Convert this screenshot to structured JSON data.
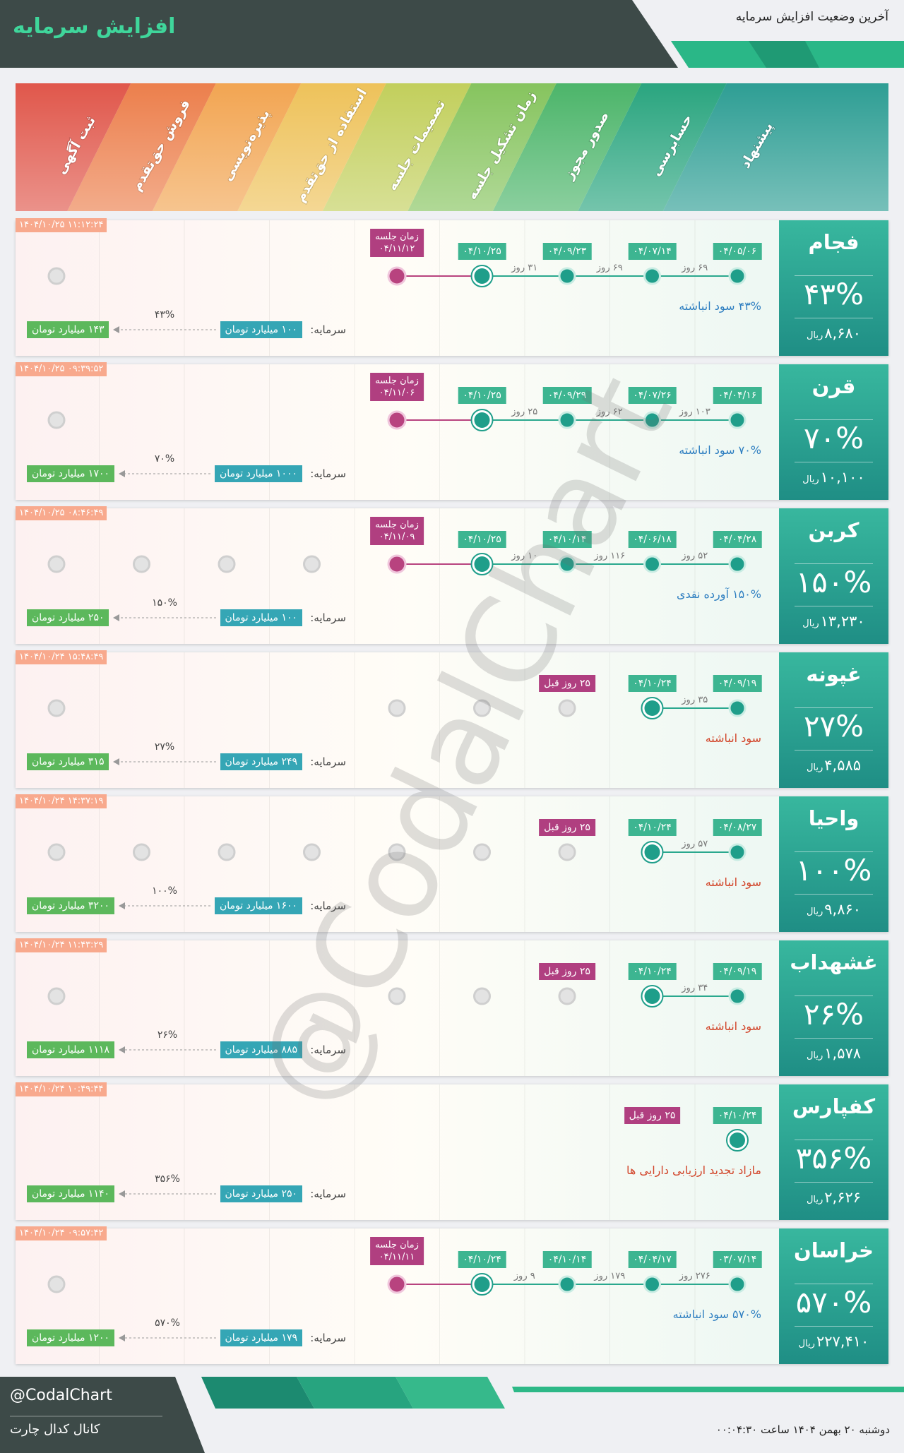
{
  "header": {
    "title": "افزایش سرمایه",
    "subtitle": "آخرین وضعیت افزایش سرمایه"
  },
  "stages": [
    "پیشنهاد",
    "حسابرسی",
    "صدور مجوز",
    "زمان تشکیل جلسه",
    "تصمیمات جلسه",
    "استفاده از حق‌تقدم",
    "پذیره‌نویسی",
    "فروش حق‌تقدم",
    "ثبت آگهی"
  ],
  "labels": {
    "meeting": "زمان جلسه",
    "capital": "سرمایه:",
    "currency": "ریال"
  },
  "rows": [
    {
      "name": "فجام",
      "percent": "۴۳%",
      "price": "۸,۶۸۰",
      "timestamp": "۱۴۰۴/۱۰/۲۵ ۱۱:۱۲:۲۴",
      "dates": [
        "۰۴/۰۵/۰۶",
        "۰۴/۰۷/۱۴",
        "۰۴/۰۹/۲۳",
        "۰۴/۱۰/۲۵"
      ],
      "gaps": [
        "۶۹ روز",
        "۶۹ روز",
        "۳۱ روز"
      ],
      "meeting": "۰۴/۱۱/۱۲",
      "description": "۴۳% سود انباشته",
      "description_color": "#2f7fc1",
      "capital_before": "۱۰۰ میلیارد تومان",
      "capital_after": "۱۴۳ میلیارد تومان",
      "increase": "۴۳%"
    },
    {
      "name": "قرن",
      "percent": "۷۰%",
      "price": "۱۰,۱۰۰",
      "timestamp": "۱۴۰۴/۱۰/۲۵ ۰۹:۳۹:۵۲",
      "dates": [
        "۰۴/۰۴/۱۶",
        "۰۴/۰۷/۲۶",
        "۰۴/۰۹/۲۹",
        "۰۴/۱۰/۲۵"
      ],
      "gaps": [
        "۱۰۳ روز",
        "۶۲ روز",
        "۲۵ روز"
      ],
      "meeting": "۰۴/۱۱/۰۶",
      "description": "۷۰% سود انباشته",
      "description_color": "#2f7fc1",
      "capital_before": "۱۰۰۰ میلیارد تومان",
      "capital_after": "۱۷۰۰ میلیارد تومان",
      "increase": "۷۰%"
    },
    {
      "name": "کربن",
      "percent": "۱۵۰%",
      "price": "۱۳,۲۳۰",
      "timestamp": "۱۴۰۴/۱۰/۲۵ ۰۸:۴۶:۴۹",
      "dates": [
        "۰۴/۰۴/۲۸",
        "۰۴/۰۶/۱۸",
        "۰۴/۱۰/۱۴",
        "۰۴/۱۰/۲۵"
      ],
      "gaps": [
        "۵۲ روز",
        "۱۱۶ روز",
        "۱۰ روز"
      ],
      "meeting": "۰۴/۱۱/۰۹",
      "description": "۱۵۰% آورده نقدی",
      "description_color": "#2f7fc1",
      "capital_before": "۱۰۰ میلیارد تومان",
      "capital_after": "۲۵۰ میلیارد تومان",
      "increase": "۱۵۰%"
    },
    {
      "name": "غپونه",
      "percent": "۲۷%",
      "price": "۴,۵۸۵",
      "timestamp": "۱۴۰۴/۱۰/۲۴ ۱۵:۴۸:۴۹",
      "dates": [
        "۰۴/۰۹/۱۹",
        "۰۴/۱۰/۲۴"
      ],
      "gaps": [
        "۳۵ روز"
      ],
      "ago": "۲۵ روز قبل",
      "description": "سود انباشته",
      "description_color": "#d2462b",
      "capital_before": "۲۴۹ میلیارد تومان",
      "capital_after": "۳۱۵ میلیارد تومان",
      "increase": "۲۷%"
    },
    {
      "name": "واحیا",
      "percent": "۱۰۰%",
      "price": "۹,۸۶۰",
      "timestamp": "۱۴۰۴/۱۰/۲۴ ۱۴:۳۷:۱۹",
      "dates": [
        "۰۴/۰۸/۲۷",
        "۰۴/۱۰/۲۴"
      ],
      "gaps": [
        "۵۷ روز"
      ],
      "ago": "۲۵ روز قبل",
      "description": "سود انباشته",
      "description_color": "#d2462b",
      "capital_before": "۱۶۰۰ میلیارد تومان",
      "capital_after": "۳۲۰۰ میلیارد تومان",
      "increase": "۱۰۰%"
    },
    {
      "name": "غشهداب",
      "percent": "۲۶%",
      "price": "۱,۵۷۸",
      "timestamp": "۱۴۰۴/۱۰/۲۴ ۱۱:۴۳:۲۹",
      "dates": [
        "۰۴/۰۹/۱۹",
        "۰۴/۱۰/۲۴"
      ],
      "gaps": [
        "۳۴ روز"
      ],
      "ago": "۲۵ روز قبل",
      "description": "سود انباشته",
      "description_color": "#d2462b",
      "capital_before": "۸۸۵ میلیارد تومان",
      "capital_after": "۱۱۱۸ میلیارد تومان",
      "increase": "۲۶%"
    },
    {
      "name": "کفپارس",
      "percent": "۳۵۶%",
      "price": "۲,۶۲۶",
      "timestamp": "۱۴۰۴/۱۰/۲۴ ۱۰:۴۹:۴۴",
      "dates": [
        "۰۴/۱۰/۲۴"
      ],
      "gaps": [],
      "ago": "۲۵ روز قبل",
      "description": "مازاد تجدید ارزیابی دارایی ها",
      "description_color": "#d2462b",
      "capital_before": "۲۵۰ میلیارد تومان",
      "capital_after": "۱۱۴۰ میلیارد تومان",
      "increase": "۳۵۶%"
    },
    {
      "name": "خراسان",
      "percent": "۵۷۰%",
      "price": "۲۲۷,۴۱۰",
      "timestamp": "۱۴۰۴/۱۰/۲۴ ۰۹:۵۷:۴۲",
      "dates": [
        "۰۳/۰۷/۱۴",
        "۰۴/۰۴/۱۷",
        "۰۴/۱۰/۱۴",
        "۰۴/۱۰/۲۴"
      ],
      "gaps": [
        "۲۷۶ روز",
        "۱۷۹ روز",
        "۹ روز"
      ],
      "meeting": "۰۴/۱۱/۱۱",
      "description": "۵۷۰% سود انباشته",
      "description_color": "#2f7fc1",
      "capital_before": "۱۷۹ میلیارد تومان",
      "capital_after": "۱۲۰۰ میلیارد تومان",
      "increase": "۵۷۰%"
    }
  ],
  "watermark": "@CodalChart",
  "footer": {
    "handle": "@CodalChart",
    "channel": "کانال کدال چارت",
    "datetime": "دوشنبه ۲۰ بهمن ۱۴۰۴ ساعت ۰۰:۰۴:۳۰"
  }
}
